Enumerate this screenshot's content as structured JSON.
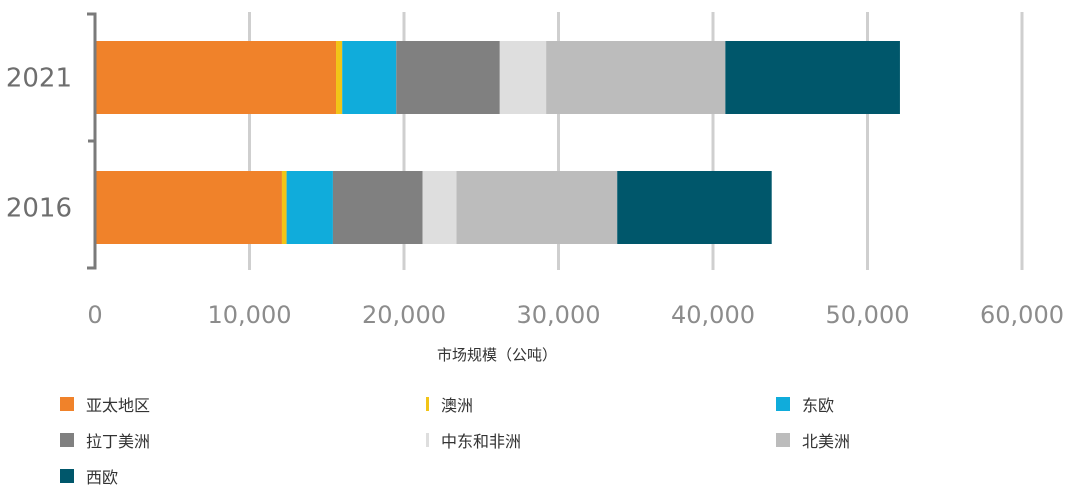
{
  "chart_data": {
    "type": "bar",
    "orientation": "horizontal",
    "stacked": true,
    "categories": [
      "2021",
      "2016"
    ],
    "series": [
      {
        "name": "亚太地区",
        "color": "#F0822A",
        "values": [
          15600,
          12100
        ]
      },
      {
        "name": "澳洲",
        "color": "#F2C417",
        "values": [
          400,
          300
        ]
      },
      {
        "name": "东欧",
        "color": "#10ACDB",
        "values": [
          3500,
          3000
        ]
      },
      {
        "name": "拉丁美洲",
        "color": "#808080",
        "values": [
          6700,
          5800
        ]
      },
      {
        "name": "中东和非洲",
        "color": "#DEDEDE",
        "values": [
          3000,
          2200
        ]
      },
      {
        "name": "北美洲",
        "color": "#BCBCBC",
        "values": [
          11600,
          10400
        ]
      },
      {
        "name": "西欧",
        "color": "#00576B",
        "values": [
          11300,
          10000
        ]
      }
    ],
    "x_ticks": [
      "0",
      "10,000",
      "20,000",
      "30,000",
      "40,000",
      "50,000",
      "60,000"
    ],
    "xlim": [
      0,
      60000
    ],
    "xlabel": "市场规模（公吨）",
    "grid": true,
    "legend_position": "bottom"
  }
}
